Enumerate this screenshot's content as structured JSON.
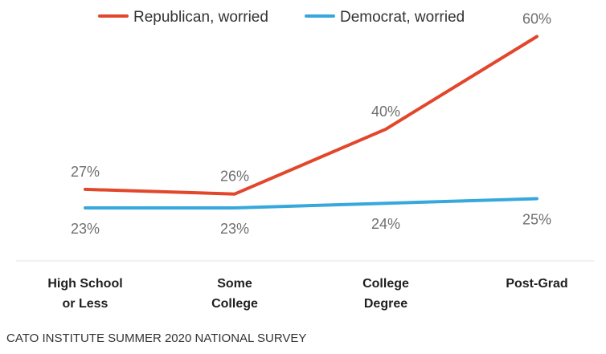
{
  "chart_data": {
    "type": "line",
    "categories": [
      [
        "High School",
        "or Less"
      ],
      [
        "Some",
        "College"
      ],
      [
        "College",
        "Degree"
      ],
      [
        "Post-Grad"
      ]
    ],
    "series": [
      {
        "name": "Republican, worried",
        "color": "#e2462b",
        "values": [
          27,
          26,
          40,
          60
        ],
        "labels": [
          "27%",
          "26%",
          "40%",
          "60%"
        ]
      },
      {
        "name": "Democrat, worried",
        "color": "#36a8dc",
        "values": [
          23,
          23,
          24,
          25
        ],
        "labels": [
          "23%",
          "23%",
          "24%",
          "25%"
        ]
      }
    ],
    "legend_position": "top",
    "grid": false,
    "xlabel": "",
    "ylabel": ""
  },
  "source": "CATO INSTITUTE SUMMER 2020 NATIONAL SURVEY"
}
